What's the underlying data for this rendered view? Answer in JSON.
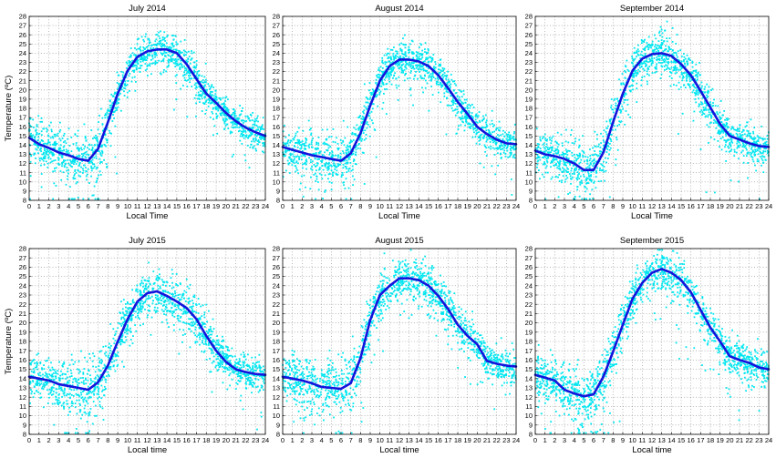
{
  "colors": {
    "scatter": "#00e6f0",
    "mean": "#1414dc",
    "axis": "#000000",
    "grid": "#8a8a8a"
  },
  "chart_data": [
    {
      "type": "scatter",
      "title": "July 2014",
      "xlabel": "Local Time",
      "ylabel": "Temperature (ºC)",
      "xlim": [
        0,
        24
      ],
      "ylim": [
        8,
        28
      ],
      "xticks": [
        0,
        1,
        2,
        3,
        4,
        5,
        6,
        7,
        8,
        9,
        10,
        11,
        12,
        13,
        14,
        15,
        16,
        17,
        18,
        19,
        20,
        21,
        22,
        23,
        24
      ],
      "yticks": [
        8,
        9,
        10,
        11,
        12,
        13,
        14,
        15,
        16,
        17,
        18,
        19,
        20,
        21,
        22,
        23,
        24,
        25,
        26,
        27,
        28
      ],
      "grid": true,
      "mean": {
        "x": [
          0,
          1,
          2,
          3,
          4,
          5,
          6,
          7,
          8,
          9,
          10,
          11,
          12,
          13,
          14,
          15,
          16,
          17,
          18,
          19,
          20,
          21,
          22,
          23,
          24
        ],
        "y": [
          14.8,
          14.1,
          13.7,
          13.2,
          12.9,
          12.5,
          12.3,
          13.6,
          16.5,
          19.6,
          22.1,
          23.6,
          24.2,
          24.4,
          24.4,
          24.0,
          22.8,
          21.2,
          19.6,
          18.6,
          17.5,
          16.6,
          15.9,
          15.4,
          15.0
        ]
      },
      "scatter": {
        "spread_y": [
          2.4,
          2.5,
          2.6,
          2.6,
          2.8,
          3.0,
          3.2,
          3.0,
          2.6,
          2.4,
          2.2,
          2.2,
          2.2,
          2.2,
          2.2,
          2.3,
          2.4,
          2.2,
          2.0,
          2.0,
          2.0,
          1.9,
          1.9,
          1.9,
          1.9
        ]
      }
    },
    {
      "type": "scatter",
      "title": "August 2014",
      "xlabel": "Local Time",
      "ylabel": "",
      "xlim": [
        0,
        24
      ],
      "ylim": [
        8,
        28
      ],
      "xticks": [
        0,
        1,
        2,
        3,
        4,
        5,
        6,
        7,
        8,
        9,
        10,
        11,
        12,
        13,
        14,
        15,
        16,
        17,
        18,
        19,
        20,
        21,
        22,
        23,
        24
      ],
      "yticks": [
        8,
        9,
        10,
        11,
        12,
        13,
        14,
        15,
        16,
        17,
        18,
        19,
        20,
        21,
        22,
        23,
        24,
        25,
        26,
        27,
        28
      ],
      "grid": true,
      "mean": {
        "x": [
          0,
          1,
          2,
          3,
          4,
          5,
          6,
          7,
          8,
          9,
          10,
          11,
          12,
          13,
          14,
          15,
          16,
          17,
          18,
          19,
          20,
          21,
          22,
          23,
          24
        ],
        "y": [
          13.8,
          13.5,
          13.2,
          12.9,
          12.7,
          12.5,
          12.3,
          13.1,
          15.3,
          18.3,
          21.0,
          22.6,
          23.3,
          23.3,
          23.1,
          22.6,
          21.6,
          20.2,
          18.7,
          17.4,
          16.0,
          15.2,
          14.6,
          14.2,
          14.1
        ]
      },
      "scatter": {
        "spread_y": [
          2.2,
          2.3,
          2.4,
          2.6,
          2.8,
          3.0,
          3.2,
          3.0,
          2.6,
          2.4,
          2.2,
          2.2,
          2.2,
          2.2,
          2.2,
          2.2,
          2.2,
          2.1,
          2.0,
          2.0,
          1.9,
          1.9,
          1.8,
          1.8,
          1.8
        ]
      }
    },
    {
      "type": "scatter",
      "title": "September 2014",
      "xlabel": "Local Time",
      "ylabel": "",
      "xlim": [
        0,
        24
      ],
      "ylim": [
        8,
        28
      ],
      "xticks": [
        0,
        1,
        2,
        3,
        4,
        5,
        6,
        7,
        8,
        9,
        10,
        11,
        12,
        13,
        14,
        15,
        16,
        17,
        18,
        19,
        20,
        21,
        22,
        23,
        24
      ],
      "yticks": [
        8,
        9,
        10,
        11,
        12,
        13,
        14,
        15,
        16,
        17,
        18,
        19,
        20,
        21,
        22,
        23,
        24,
        25,
        26,
        27,
        28
      ],
      "grid": true,
      "mean": {
        "x": [
          0,
          1,
          2,
          3,
          4,
          5,
          6,
          7,
          8,
          9,
          10,
          11,
          12,
          13,
          14,
          15,
          16,
          17,
          18,
          19,
          20,
          21,
          22,
          23,
          24
        ],
        "y": [
          13.4,
          13.0,
          12.8,
          12.5,
          12.0,
          11.3,
          11.3,
          13.2,
          16.5,
          19.6,
          22.1,
          23.4,
          23.9,
          24.0,
          23.7,
          22.8,
          21.6,
          19.9,
          18.1,
          16.3,
          15.0,
          14.6,
          14.2,
          13.9,
          13.8
        ]
      },
      "scatter": {
        "spread_y": [
          2.4,
          2.4,
          2.6,
          2.8,
          3.0,
          3.2,
          3.4,
          3.2,
          3.0,
          2.8,
          2.6,
          2.6,
          2.6,
          2.6,
          2.6,
          2.6,
          2.7,
          2.6,
          2.4,
          2.2,
          2.1,
          2.0,
          2.0,
          2.0,
          2.0
        ]
      }
    },
    {
      "type": "scatter",
      "title": "July 2015",
      "xlabel": "Local time",
      "ylabel": "Temperature (ºC)",
      "xlim": [
        0,
        24
      ],
      "ylim": [
        8,
        28
      ],
      "xticks": [
        0,
        1,
        2,
        3,
        4,
        5,
        6,
        7,
        8,
        9,
        10,
        11,
        12,
        13,
        14,
        15,
        16,
        17,
        18,
        19,
        20,
        21,
        22,
        23,
        24
      ],
      "yticks": [
        8,
        9,
        10,
        11,
        12,
        13,
        14,
        15,
        16,
        17,
        18,
        19,
        20,
        21,
        22,
        23,
        24,
        25,
        26,
        27,
        28
      ],
      "grid": true,
      "mean": {
        "x": [
          0,
          1,
          2,
          3,
          4,
          5,
          6,
          7,
          8,
          9,
          10,
          11,
          12,
          13,
          14,
          15,
          16,
          17,
          18,
          19,
          20,
          21,
          22,
          23,
          24
        ],
        "y": [
          14.2,
          14.0,
          13.8,
          13.4,
          13.2,
          13.0,
          12.8,
          13.6,
          15.4,
          18.0,
          20.4,
          22.3,
          23.2,
          23.4,
          22.9,
          22.3,
          21.6,
          20.4,
          18.6,
          17.0,
          15.8,
          15.0,
          14.7,
          14.5,
          14.4
        ]
      },
      "scatter": {
        "spread_y": [
          2.5,
          2.6,
          2.8,
          3.0,
          3.2,
          3.4,
          3.6,
          3.4,
          3.0,
          2.8,
          2.6,
          2.6,
          2.8,
          2.8,
          2.8,
          2.8,
          2.8,
          2.6,
          2.4,
          2.2,
          2.0,
          2.0,
          2.0,
          2.0,
          2.0
        ]
      }
    },
    {
      "type": "scatter",
      "title": "August 2015",
      "xlabel": "Local time",
      "ylabel": "",
      "xlim": [
        0,
        24
      ],
      "ylim": [
        8,
        28
      ],
      "xticks": [
        0,
        1,
        2,
        3,
        4,
        5,
        6,
        7,
        8,
        9,
        10,
        11,
        12,
        13,
        14,
        15,
        16,
        17,
        18,
        19,
        20,
        21,
        22,
        23,
        24
      ],
      "yticks": [
        8,
        9,
        10,
        11,
        12,
        13,
        14,
        15,
        16,
        17,
        18,
        19,
        20,
        21,
        22,
        23,
        24,
        25,
        26,
        27,
        28
      ],
      "grid": true,
      "mean": {
        "x": [
          0,
          1,
          2,
          3,
          4,
          5,
          6,
          7,
          8,
          9,
          10,
          11,
          12,
          13,
          14,
          15,
          16,
          17,
          18,
          19,
          20,
          21,
          22,
          23,
          24
        ],
        "y": [
          14.2,
          14.0,
          13.8,
          13.5,
          13.1,
          13.0,
          12.9,
          13.5,
          16.2,
          20.3,
          23.0,
          24.0,
          24.8,
          24.8,
          24.6,
          24.0,
          22.9,
          21.5,
          19.8,
          18.6,
          17.7,
          15.9,
          15.6,
          15.4,
          15.3
        ]
      },
      "scatter": {
        "spread_y": [
          2.5,
          2.6,
          2.8,
          3.0,
          3.2,
          3.4,
          3.5,
          3.4,
          3.0,
          2.8,
          2.6,
          2.5,
          2.5,
          2.5,
          2.5,
          2.5,
          2.5,
          2.4,
          2.3,
          2.2,
          2.1,
          2.0,
          2.0,
          2.0,
          2.0
        ]
      }
    },
    {
      "type": "scatter",
      "title": "September 2015",
      "xlabel": "Local time",
      "ylabel": "",
      "xlim": [
        0,
        24
      ],
      "ylim": [
        8,
        28
      ],
      "xticks": [
        0,
        1,
        2,
        3,
        4,
        5,
        6,
        7,
        8,
        9,
        10,
        11,
        12,
        13,
        14,
        15,
        16,
        17,
        18,
        19,
        20,
        21,
        22,
        23,
        24
      ],
      "yticks": [
        8,
        9,
        10,
        11,
        12,
        13,
        14,
        15,
        16,
        17,
        18,
        19,
        20,
        21,
        22,
        23,
        24,
        25,
        26,
        27,
        28
      ],
      "grid": true,
      "mean": {
        "x": [
          0,
          1,
          2,
          3,
          4,
          5,
          6,
          7,
          8,
          9,
          10,
          11,
          12,
          13,
          14,
          15,
          16,
          17,
          18,
          19,
          20,
          21,
          22,
          23,
          24
        ],
        "y": [
          14.4,
          14.1,
          13.8,
          12.8,
          12.4,
          12.1,
          12.3,
          14.2,
          16.9,
          19.8,
          22.6,
          24.3,
          25.4,
          25.8,
          25.4,
          24.6,
          23.3,
          21.4,
          19.5,
          18.0,
          16.4,
          16.0,
          15.7,
          15.2,
          15.0
        ]
      },
      "scatter": {
        "spread_y": [
          2.6,
          2.7,
          2.8,
          3.0,
          3.2,
          3.4,
          3.6,
          3.4,
          3.0,
          2.8,
          2.6,
          2.4,
          2.4,
          2.4,
          2.4,
          2.4,
          2.4,
          2.3,
          2.2,
          2.1,
          2.0,
          2.0,
          2.0,
          2.0,
          2.0
        ]
      }
    }
  ]
}
